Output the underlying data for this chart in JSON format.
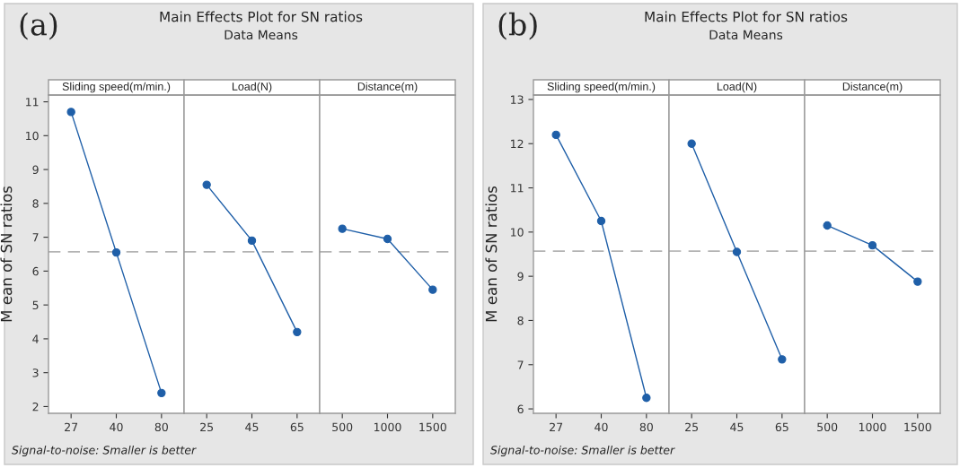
{
  "chart_data": [
    {
      "type": "line",
      "title": "Sliding speed(m/min.)",
      "ylabel": "M ean of SN ratios",
      "annotations": [
        "(a)",
        "Main Effects Plot for SN ratios",
        "Data Means",
        "Signal-to-noise: Smaller is better"
      ],
      "categories": [
        "27",
        "40",
        "80"
      ],
      "values": [
        10.7,
        6.55,
        2.4
      ],
      "color": "#1f5fa8",
      "marker": "circle",
      "ylim": [
        1.8,
        11.2
      ],
      "yticks": [
        2,
        3,
        4,
        5,
        6,
        7,
        8,
        9,
        10,
        11
      ],
      "ref_lines": [
        {
          "axis": "y",
          "value": 6.57,
          "color": "#b4b4b4",
          "line_style": "dashed"
        }
      ]
    },
    {
      "type": "line",
      "title": "Load(N)",
      "categories": [
        "25",
        "45",
        "65"
      ],
      "values": [
        8.55,
        6.9,
        4.2
      ],
      "color": "#1f5fa8",
      "marker": "circle",
      "ylim": [
        1.8,
        11.2
      ],
      "tick_labels": "x",
      "ref_lines": [
        {
          "axis": "y",
          "value": 6.57,
          "color": "#b4b4b4",
          "line_style": "dashed"
        }
      ]
    },
    {
      "type": "line",
      "title": "Distance(m)",
      "categories": [
        "500",
        "1000",
        "1500"
      ],
      "values": [
        7.25,
        6.95,
        5.45
      ],
      "color": "#1f5fa8",
      "marker": "circle",
      "ylim": [
        1.8,
        11.2
      ],
      "tick_labels": "x",
      "ref_lines": [
        {
          "axis": "y",
          "value": 6.57,
          "color": "#b4b4b4",
          "line_style": "dashed"
        }
      ]
    },
    {
      "type": "line",
      "title": "Sliding speed(m/min.)",
      "ylabel": "M ean of SN ratios",
      "annotations": [
        "(b)",
        "Main Effects Plot for SN ratios",
        "Data Means",
        "Signal-to-noise: Smaller is better"
      ],
      "categories": [
        "27",
        "40",
        "80"
      ],
      "values": [
        12.2,
        10.25,
        6.25
      ],
      "color": "#1f5fa8",
      "marker": "circle",
      "ylim": [
        5.9,
        13.1
      ],
      "yticks": [
        6,
        7,
        8,
        9,
        10,
        11,
        12,
        13
      ],
      "ref_lines": [
        {
          "axis": "y",
          "value": 9.57,
          "color": "#b4b4b4",
          "line_style": "dashed"
        }
      ]
    },
    {
      "type": "line",
      "title": "Load(N)",
      "categories": [
        "25",
        "45",
        "65"
      ],
      "values": [
        12.0,
        9.55,
        7.12
      ],
      "color": "#1f5fa8",
      "marker": "circle",
      "ylim": [
        5.9,
        13.1
      ],
      "tick_labels": "x",
      "ref_lines": [
        {
          "axis": "y",
          "value": 9.57,
          "color": "#b4b4b4",
          "line_style": "dashed"
        }
      ]
    },
    {
      "type": "line",
      "title": "Distance(m)",
      "categories": [
        "500",
        "1000",
        "1500"
      ],
      "values": [
        10.15,
        9.7,
        8.88
      ],
      "color": "#1f5fa8",
      "marker": "circle",
      "ylim": [
        5.9,
        13.1
      ],
      "tick_labels": "x",
      "ref_lines": [
        {
          "axis": "y",
          "value": 9.57,
          "color": "#b4b4b4",
          "line_style": "dashed"
        }
      ]
    }
  ]
}
